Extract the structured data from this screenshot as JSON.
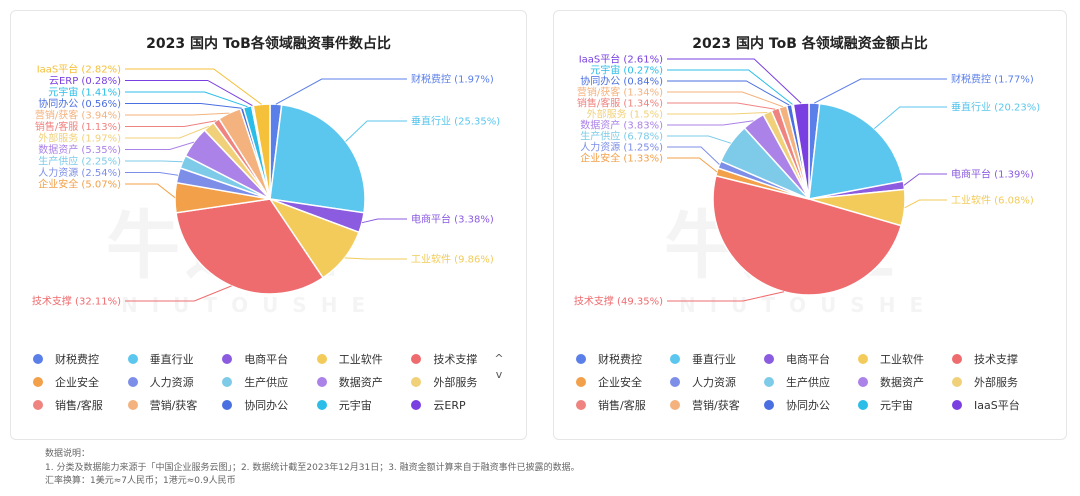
{
  "notes": {
    "heading": "数据说明：",
    "line1": "1. 分类及数据能力来源于「中国企业服务云图」；2. 数据统计截至2023年12月31日；3. 融资金额计算来自于融资事件已披露的数据。",
    "line2": "汇率换算：1美元≈7人民币；1港元≈0.9人民币"
  },
  "watermark": {
    "main": "牛透社",
    "sub": "NIUTOUSHE"
  },
  "chart_data": [
    {
      "type": "pie",
      "title": "2023 国内 ToB各领域融资事件数占比",
      "categories": [
        "财税费控",
        "垂直行业",
        "电商平台",
        "工业软件",
        "技术支撑",
        "企业安全",
        "人力资源",
        "生产供应",
        "数据资产",
        "外部服务",
        "销售/客服",
        "营销/获客",
        "协同办公",
        "元宇宙",
        "云ERP",
        "IaaS平台"
      ],
      "values": [
        1.97,
        25.35,
        3.38,
        9.86,
        32.11,
        5.07,
        2.54,
        2.25,
        5.35,
        1.97,
        1.13,
        3.94,
        0.56,
        1.41,
        0.28,
        2.82
      ],
      "colors": [
        "#5b7fe8",
        "#5bc6ee",
        "#8b5be0",
        "#f2cb5a",
        "#ee6b6e",
        "#f2a04a",
        "#7d8ee8",
        "#7dcbe8",
        "#ab82e8",
        "#f0d17a",
        "#ef8380",
        "#f3b27e",
        "#4a6fe0",
        "#2bbde8",
        "#7a3fe0",
        "#f5c03a"
      ],
      "legend": {
        "rows": [
          [
            "财税费控",
            "垂直行业",
            "电商平台",
            "工业软件",
            "技术支撑"
          ],
          [
            "企业安全",
            "人力资源",
            "生产供应",
            "数据资产",
            "外部服务"
          ],
          [
            "销售/客服",
            "营销/获客",
            "协同办公",
            "元宇宙",
            "云ERP"
          ]
        ],
        "colors": [
          [
            "#5b7fe8",
            "#5bc6ee",
            "#8b5be0",
            "#f2cb5a",
            "#ee6b6e"
          ],
          [
            "#f2a04a",
            "#7d8ee8",
            "#7dcbe8",
            "#ab82e8",
            "#f0d17a"
          ],
          [
            "#ef8380",
            "#f3b27e",
            "#4a6fe0",
            "#2bbde8",
            "#7a3fe0"
          ]
        ]
      },
      "labels": [
        {
          "text": "财税费控 (1.97%)",
          "side": "right"
        },
        {
          "text": "垂直行业 (25.35%)",
          "side": "right"
        },
        {
          "text": "电商平台 (3.38%)",
          "side": "right"
        },
        {
          "text": "工业软件 (9.86%)",
          "side": "right"
        },
        {
          "text": "技术支撑 (32.11%)",
          "side": "left"
        },
        {
          "text": "企业安全 (5.07%)",
          "side": "left"
        },
        {
          "text": "人力资源 (2.54%)",
          "side": "left"
        },
        {
          "text": "生产供应 (2.25%)",
          "side": "left"
        },
        {
          "text": "数据资产 (5.35%)",
          "side": "left"
        },
        {
          "text": "外部服务 (1.97%)",
          "side": "left"
        },
        {
          "text": "销售/客服 (1.13%)",
          "side": "left"
        },
        {
          "text": "营销/获客 (3.94%)",
          "side": "left"
        },
        {
          "text": "协同办公 (0.56%)",
          "side": "left"
        },
        {
          "text": "元宇宙 (1.41%)",
          "side": "left"
        },
        {
          "text": "云ERP (0.28%)",
          "side": "left"
        },
        {
          "text": "IaaS平台 (2.82%)",
          "side": "left"
        }
      ],
      "legend_pager": [
        "^",
        "v"
      ]
    },
    {
      "type": "pie",
      "title": "2023 国内 ToB 各领域融资金额占比",
      "categories": [
        "财税费控",
        "垂直行业",
        "电商平台",
        "工业软件",
        "技术支撑",
        "企业安全",
        "人力资源",
        "生产供应",
        "数据资产",
        "外部服务",
        "销售/客服",
        "营销/获客",
        "协同办公",
        "元宇宙",
        "IaaS平台"
      ],
      "values": [
        1.77,
        20.23,
        1.39,
        6.08,
        49.35,
        1.33,
        1.25,
        6.78,
        3.83,
        1.5,
        1.34,
        1.34,
        0.84,
        0.27,
        2.61
      ],
      "colors": [
        "#5b7fe8",
        "#5bc6ee",
        "#8b5be0",
        "#f2cb5a",
        "#ee6b6e",
        "#f2a04a",
        "#7d8ee8",
        "#7dcbe8",
        "#ab82e8",
        "#f0d17a",
        "#ef8380",
        "#f3b27e",
        "#4a6fe0",
        "#2bbde8",
        "#7a3fe0"
      ],
      "legend": {
        "rows": [
          [
            "财税费控",
            "垂直行业",
            "电商平台",
            "工业软件",
            "技术支撑"
          ],
          [
            "企业安全",
            "人力资源",
            "生产供应",
            "数据资产",
            "外部服务"
          ],
          [
            "销售/客服",
            "营销/获客",
            "协同办公",
            "元宇宙",
            "IaaS平台"
          ]
        ],
        "colors": [
          [
            "#5b7fe8",
            "#5bc6ee",
            "#8b5be0",
            "#f2cb5a",
            "#ee6b6e"
          ],
          [
            "#f2a04a",
            "#7d8ee8",
            "#7dcbe8",
            "#ab82e8",
            "#f0d17a"
          ],
          [
            "#ef8380",
            "#f3b27e",
            "#4a6fe0",
            "#2bbde8",
            "#7a3fe0"
          ]
        ]
      },
      "labels": [
        {
          "text": "财税费控 (1.77%)",
          "side": "right"
        },
        {
          "text": "垂直行业 (20.23%)",
          "side": "right"
        },
        {
          "text": "电商平台 (1.39%)",
          "side": "right"
        },
        {
          "text": "工业软件 (6.08%)",
          "side": "right"
        },
        {
          "text": "技术支撑 (49.35%)",
          "side": "left"
        },
        {
          "text": "企业安全 (1.33%)",
          "side": "left"
        },
        {
          "text": "人力资源 (1.25%)",
          "side": "left"
        },
        {
          "text": "生产供应 (6.78%)",
          "side": "left"
        },
        {
          "text": "数据资产 (3.83%)",
          "side": "left"
        },
        {
          "text": "外部服务 (1.5%)",
          "side": "left"
        },
        {
          "text": "销售/客服 (1.34%)",
          "side": "left"
        },
        {
          "text": "营销/获客 (1.34%)",
          "side": "left"
        },
        {
          "text": "协同办公 (0.84%)",
          "side": "left"
        },
        {
          "text": "元宇宙 (0.27%)",
          "side": "left"
        },
        {
          "text": "IaaS平台 (2.61%)",
          "side": "left"
        }
      ]
    }
  ]
}
